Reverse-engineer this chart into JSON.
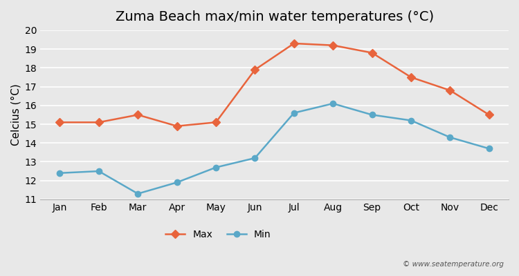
{
  "months": [
    "Jan",
    "Feb",
    "Mar",
    "Apr",
    "May",
    "Jun",
    "Jul",
    "Aug",
    "Sep",
    "Oct",
    "Nov",
    "Dec"
  ],
  "max_temps": [
    15.1,
    15.1,
    15.5,
    14.9,
    15.1,
    17.9,
    19.3,
    19.2,
    18.8,
    17.5,
    16.8,
    15.5
  ],
  "min_temps": [
    12.4,
    12.5,
    11.3,
    11.9,
    12.7,
    13.2,
    15.6,
    16.1,
    15.5,
    15.2,
    14.3,
    13.7
  ],
  "max_color": "#e8643c",
  "min_color": "#5aa8c8",
  "title": "Zuma Beach max/min water temperatures (°C)",
  "ylabel": "Celcius (°C)",
  "ylim": [
    11,
    20
  ],
  "yticks": [
    11,
    12,
    13,
    14,
    15,
    16,
    17,
    18,
    19,
    20
  ],
  "bg_color": "#e8e8e8",
  "plot_bg_color": "#e8e8e8",
  "grid_color": "#ffffff",
  "legend_labels": [
    "Max",
    "Min"
  ],
  "watermark": "© www.seatemperature.org",
  "title_fontsize": 14,
  "axis_label_fontsize": 11,
  "tick_fontsize": 10
}
